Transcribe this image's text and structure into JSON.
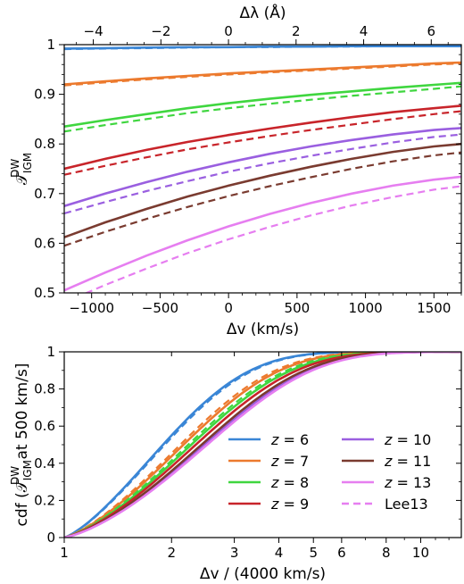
{
  "colors": {
    "z6": "#3a86d6",
    "z7": "#ec7a2e",
    "z8": "#3fd63f",
    "z9": "#c8242a",
    "z10": "#9a5fe0",
    "z11": "#7a3b30",
    "z13": "#e67ef0",
    "lee13": "#e67ef0"
  },
  "chart_data": [
    {
      "type": "line",
      "xlabel": "Δv  (km/s)",
      "ylabel": "T_IGM^DW",
      "ylabel_main": "𝒯",
      "ylabel_sub": "IGM",
      "ylabel_sup": "DW",
      "top_xlabel": "Δλ  (Å)",
      "xlim": [
        -1200,
        1700
      ],
      "ylim": [
        0.5,
        1.0
      ],
      "xticks": [
        -1000,
        -500,
        0,
        500,
        1000,
        1500
      ],
      "xtick_labels": [
        "−1000",
        "−500",
        "0",
        "500",
        "1000",
        "1500"
      ],
      "yticks": [
        0.5,
        0.6,
        0.7,
        0.8,
        0.9,
        1.0
      ],
      "ytick_labels": [
        "0.5",
        "0.6",
        "0.7",
        "0.8",
        "0.9",
        "1"
      ],
      "top_xlim": [
        -4.86,
        6.89
      ],
      "top_xticks": [
        -4,
        -2,
        0,
        2,
        4,
        6
      ],
      "top_xtick_labels": [
        "−4",
        "−2",
        "0",
        "2",
        "4",
        "6"
      ],
      "x": [
        -1200,
        -900,
        -600,
        -300,
        0,
        300,
        600,
        900,
        1200,
        1500,
        1700
      ],
      "series": [
        {
          "z": "6",
          "color_key": "z6",
          "solid": [
            0.992,
            0.993,
            0.994,
            0.995,
            0.995,
            0.996,
            0.996,
            0.997,
            0.997,
            0.997,
            0.997
          ],
          "dashed": [
            0.991,
            0.992,
            0.993,
            0.994,
            0.995,
            0.995,
            0.996,
            0.996,
            0.997,
            0.997,
            0.997
          ]
        },
        {
          "z": "7",
          "color_key": "z7",
          "solid": [
            0.92,
            0.926,
            0.932,
            0.937,
            0.942,
            0.946,
            0.95,
            0.954,
            0.958,
            0.962,
            0.964
          ],
          "dashed": [
            0.918,
            0.924,
            0.93,
            0.935,
            0.94,
            0.944,
            0.948,
            0.952,
            0.956,
            0.96,
            0.962
          ]
        },
        {
          "z": "8",
          "color_key": "z8",
          "solid": [
            0.835,
            0.848,
            0.86,
            0.872,
            0.882,
            0.891,
            0.899,
            0.906,
            0.913,
            0.919,
            0.923
          ],
          "dashed": [
            0.825,
            0.838,
            0.85,
            0.862,
            0.872,
            0.881,
            0.889,
            0.897,
            0.904,
            0.911,
            0.916
          ]
        },
        {
          "z": "9",
          "color_key": "z9",
          "solid": [
            0.75,
            0.77,
            0.788,
            0.804,
            0.818,
            0.831,
            0.843,
            0.854,
            0.864,
            0.872,
            0.877
          ],
          "dashed": [
            0.738,
            0.756,
            0.773,
            0.789,
            0.803,
            0.816,
            0.828,
            0.839,
            0.85,
            0.86,
            0.866
          ]
        },
        {
          "z": "10",
          "color_key": "z10",
          "solid": [
            0.675,
            0.7,
            0.723,
            0.744,
            0.763,
            0.78,
            0.795,
            0.808,
            0.819,
            0.828,
            0.832
          ],
          "dashed": [
            0.66,
            0.683,
            0.705,
            0.725,
            0.744,
            0.761,
            0.776,
            0.79,
            0.803,
            0.814,
            0.819
          ]
        },
        {
          "z": "11",
          "color_key": "z11",
          "solid": [
            0.612,
            0.642,
            0.669,
            0.694,
            0.716,
            0.736,
            0.754,
            0.77,
            0.784,
            0.795,
            0.8
          ],
          "dashed": [
            0.595,
            0.623,
            0.649,
            0.673,
            0.695,
            0.715,
            0.733,
            0.75,
            0.765,
            0.777,
            0.783
          ]
        },
        {
          "z": "13",
          "color_key": "z13",
          "solid": [
            0.505,
            0.541,
            0.575,
            0.606,
            0.634,
            0.659,
            0.681,
            0.7,
            0.716,
            0.728,
            0.734
          ],
          "dashed": [
            0.481,
            0.516,
            0.549,
            0.58,
            0.608,
            0.633,
            0.656,
            0.676,
            0.693,
            0.708,
            0.715
          ]
        }
      ]
    },
    {
      "type": "line",
      "xlabel": "Δv / (4000 km/s)",
      "ylabel": "cdf (T_IGM^DW at 500 km/s]",
      "ylabel_pre": "cdf (",
      "ylabel_main": "𝒯",
      "ylabel_sub": "IGM",
      "ylabel_sup": "DW",
      "ylabel_post": " at 500 km/s]",
      "xscale": "log",
      "xlim": [
        1,
        13
      ],
      "ylim": [
        0,
        1
      ],
      "xticks": [
        1,
        2,
        3,
        4,
        5,
        6,
        8,
        10
      ],
      "xtick_labels": [
        "1",
        "2",
        "3",
        "4",
        "5",
        "6",
        "8",
        "10"
      ],
      "yticks": [
        0,
        0.2,
        0.4,
        0.6,
        0.8,
        1.0
      ],
      "ytick_labels": [
        "0",
        "0.2",
        "0.4",
        "0.6",
        "0.8",
        "1"
      ],
      "legend_placement": "lower-right",
      "series": [
        {
          "label": "z = 6",
          "label_z": "z",
          "label_val": " = 6",
          "color_key": "z6",
          "solid": true,
          "scale": 2.0,
          "dashed_scale": 2.05
        },
        {
          "label": "z = 7",
          "label_z": "z",
          "label_val": " = 7",
          "color_key": "z7",
          "solid": true,
          "scale": 2.6,
          "dashed_scale": 2.5
        },
        {
          "label": "z = 8",
          "label_z": "z",
          "label_val": " = 8",
          "color_key": "z8",
          "solid": true,
          "scale": 2.85,
          "dashed_scale": 2.75
        },
        {
          "label": "z = 9",
          "label_z": "z",
          "label_val": " = 9",
          "color_key": "z9",
          "solid": true,
          "scale": 3.0
        },
        {
          "label": "z = 10",
          "label_z": "z",
          "label_val": " = 10",
          "color_key": "z10",
          "solid": true,
          "scale": 3.3
        },
        {
          "label": "z = 11",
          "label_z": "z",
          "label_val": " = 11",
          "color_key": "z11",
          "solid": true,
          "scale": 3.2
        },
        {
          "label": "z = 13",
          "label_z": "z",
          "label_val": " = 13",
          "color_key": "z13",
          "solid": true,
          "scale": 3.4
        },
        {
          "label": "Lee13",
          "color_key": "lee13",
          "solid": false
        }
      ]
    }
  ]
}
